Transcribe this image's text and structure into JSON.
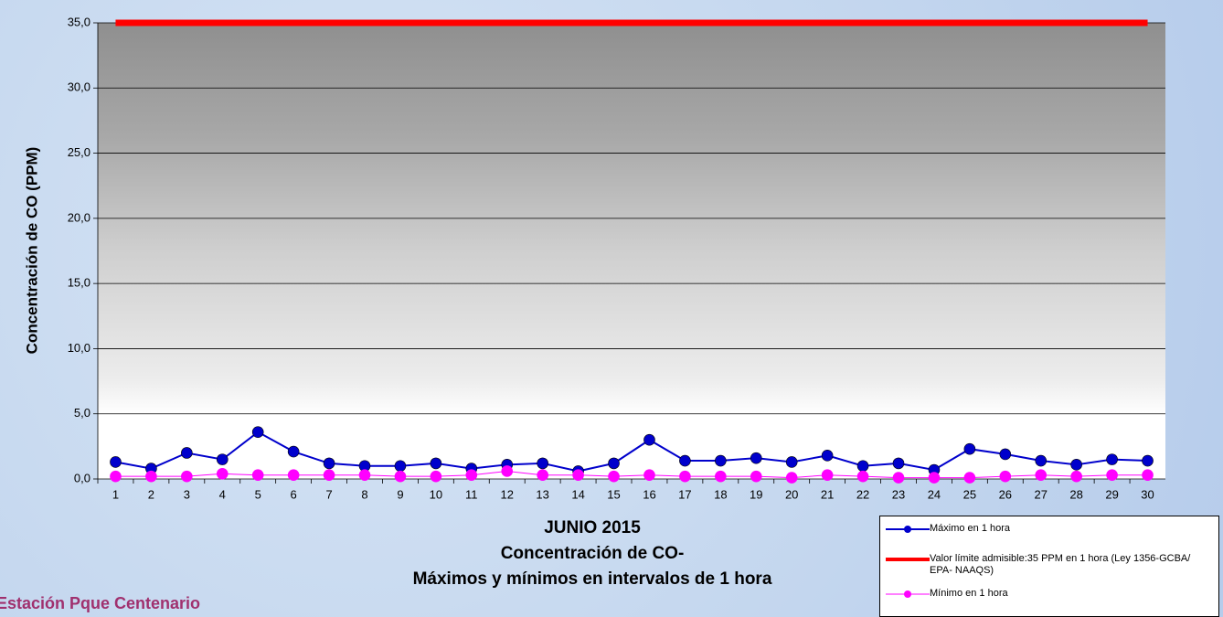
{
  "chart_data": {
    "type": "line",
    "title": "JUNIO 2015",
    "subtitle": "Concentración de CO-",
    "subtitle2": "Máximos y mínimos en intervalos de 1 hora",
    "ylabel": "Concentración de CO (PPM)",
    "footer": "Estación Pque Centenario",
    "categories": [
      "1",
      "2",
      "3",
      "4",
      "5",
      "6",
      "7",
      "8",
      "9",
      "10",
      "11",
      "12",
      "13",
      "14",
      "15",
      "16",
      "17",
      "18",
      "19",
      "20",
      "21",
      "22",
      "23",
      "24",
      "25",
      "26",
      "27",
      "28",
      "29",
      "30"
    ],
    "series": [
      {
        "name": "Máximo en 1 hora",
        "color": "#0000cc",
        "markers": true,
        "width": 2,
        "values": [
          1.3,
          0.8,
          2.0,
          1.5,
          3.6,
          2.1,
          1.2,
          1.0,
          1.0,
          1.2,
          0.8,
          1.1,
          1.2,
          0.6,
          1.2,
          3.0,
          1.4,
          1.4,
          1.6,
          1.3,
          1.8,
          1.0,
          1.2,
          0.7,
          2.3,
          1.9,
          1.4,
          1.1,
          1.5,
          1.4
        ]
      },
      {
        "name": "Valor límite admisible:35 PPM en 1 hora (Ley 1356-GCBA/ EPA- NAAQS)",
        "color": "#ff0000",
        "markers": false,
        "width": 7,
        "values": [
          35,
          35,
          35,
          35,
          35,
          35,
          35,
          35,
          35,
          35,
          35,
          35,
          35,
          35,
          35,
          35,
          35,
          35,
          35,
          35,
          35,
          35,
          35,
          35,
          35,
          35,
          35,
          35,
          35,
          35
        ]
      },
      {
        "name": "Mínimo en 1 hora",
        "color": "#ff00ff",
        "markers": true,
        "width": 1,
        "values": [
          0.2,
          0.2,
          0.2,
          0.4,
          0.3,
          0.3,
          0.3,
          0.3,
          0.2,
          0.2,
          0.3,
          0.6,
          0.3,
          0.3,
          0.2,
          0.3,
          0.2,
          0.2,
          0.2,
          0.1,
          0.3,
          0.2,
          0.1,
          0.1,
          0.1,
          0.2,
          0.3,
          0.2,
          0.3,
          0.3
        ]
      }
    ],
    "ylim": [
      0,
      35
    ],
    "yticks": [
      {
        "value": 0,
        "label": "0,0"
      },
      {
        "value": 5,
        "label": "5,0"
      },
      {
        "value": 10,
        "label": "10,0"
      },
      {
        "value": 15,
        "label": "15,0"
      },
      {
        "value": 20,
        "label": "20,0"
      },
      {
        "value": 25,
        "label": "25,0"
      },
      {
        "value": 30,
        "label": "30,0"
      },
      {
        "value": 35,
        "label": "35,0"
      }
    ],
    "grid": true
  }
}
